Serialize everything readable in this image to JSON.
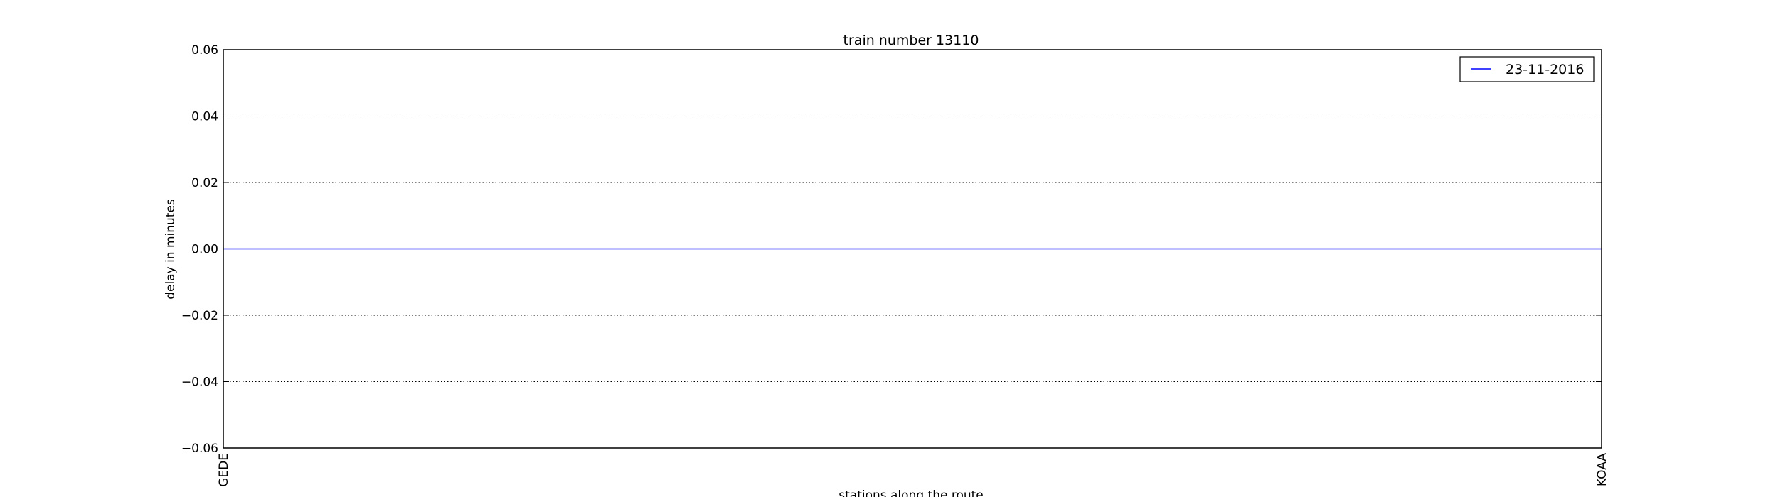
{
  "chart_data": {
    "type": "line",
    "title": "train number 13110",
    "xlabel": "stations along the route",
    "ylabel": "delay in minutes",
    "categories": [
      "GEDE",
      "KOAA"
    ],
    "series": [
      {
        "name": "23-11-2016",
        "values": [
          0.0,
          0.0
        ],
        "color": "#0000ff"
      }
    ],
    "ylim": [
      -0.06,
      0.06
    ],
    "yticks": [
      -0.06,
      -0.04,
      -0.02,
      0.0,
      0.02,
      0.04,
      0.06
    ],
    "ytick_labels": [
      "−0.06",
      "−0.04",
      "−0.02",
      "0.00",
      "0.02",
      "0.04",
      "0.06"
    ],
    "grid": "horizontal-dotted",
    "legend_position": "top-right"
  }
}
